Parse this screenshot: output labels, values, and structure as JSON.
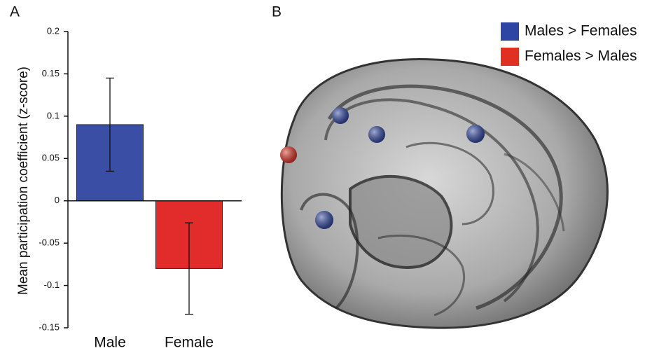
{
  "chart_data": {
    "type": "bar",
    "panel_label": "A",
    "ylabel": "Mean participation coefficient (z-score)",
    "categories": [
      "Male",
      "Female"
    ],
    "values": [
      0.09,
      -0.08
    ],
    "errors": [
      0.055,
      0.054
    ],
    "colors": [
      "#3a4ea6",
      "#e22b2b"
    ],
    "ylim": [
      -0.15,
      0.2
    ],
    "yticks": [
      0.2,
      0.15,
      0.1,
      0.05,
      0,
      -0.05,
      -0.1,
      -0.15
    ]
  },
  "panel_b": {
    "panel_label": "B",
    "legend": [
      {
        "name": "Males > Females",
        "color": "#2f45a3"
      },
      {
        "name": "Females > Males",
        "color": "#e13022"
      }
    ]
  }
}
